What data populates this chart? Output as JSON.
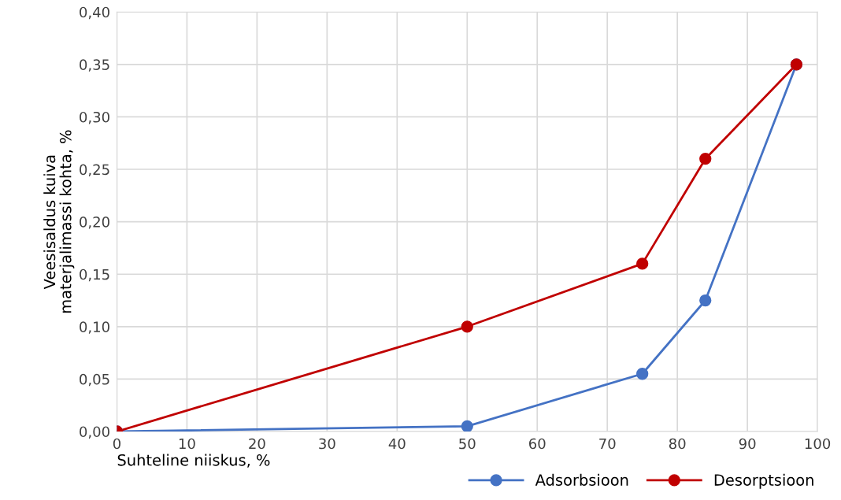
{
  "chart_data": {
    "type": "line",
    "xlabel": "Suhteline niiskus, %",
    "ylabel": "Veesisaldus kuiva\nmaterjalimassi kohta, %",
    "series": [
      {
        "name": "Adsorbsioon",
        "color": "#4472c4",
        "x": [
          0,
          50,
          75,
          84,
          97
        ],
        "values": [
          0,
          0.005,
          0.055,
          0.125,
          0.35
        ]
      },
      {
        "name": "Desorptsioon",
        "color": "#c00000",
        "x": [
          0,
          50,
          75,
          84,
          97
        ],
        "values": [
          0,
          0.1,
          0.16,
          0.26,
          0.35
        ]
      }
    ],
    "xlim": [
      0,
      100
    ],
    "xticks": [
      0,
      10,
      20,
      30,
      40,
      50,
      60,
      70,
      80,
      90,
      100
    ],
    "ylim": [
      0,
      0.4
    ],
    "yticks": [
      {
        "value": 0,
        "label": "0,00"
      },
      {
        "value": 0.05,
        "label": "0,05"
      },
      {
        "value": 0.1,
        "label": "0,10"
      },
      {
        "value": 0.15,
        "label": "0,15"
      },
      {
        "value": 0.2,
        "label": "0,20"
      },
      {
        "value": 0.25,
        "label": "0,25"
      },
      {
        "value": 0.3,
        "label": "0,30"
      },
      {
        "value": 0.35,
        "label": "0,35"
      },
      {
        "value": 0.4,
        "label": "0,40"
      }
    ],
    "grid": true,
    "legend": "bottom right",
    "marker": "circle",
    "line_style": "solid"
  }
}
